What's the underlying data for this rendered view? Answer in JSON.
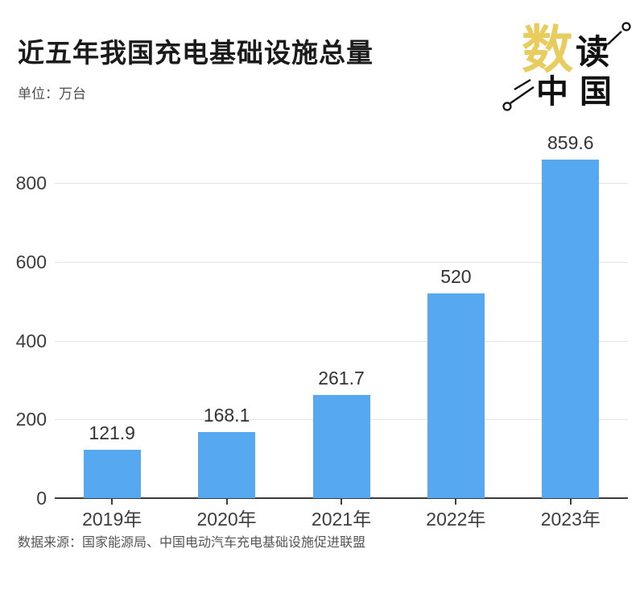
{
  "header": {
    "title": "近五年我国充电基础设施总量",
    "unit_label": "单位：万台"
  },
  "logo": {
    "char_main": "数",
    "char_second": "读",
    "chars_bottom": "中国",
    "accent_color": "#E8CC5E",
    "text_color": "#111111"
  },
  "chart_data": {
    "type": "bar",
    "categories": [
      "2019年",
      "2020年",
      "2021年",
      "2022年",
      "2023年"
    ],
    "values": [
      121.9,
      168.1,
      261.7,
      520,
      859.6
    ],
    "value_labels": [
      "121.9",
      "168.1",
      "261.7",
      "520",
      "859.6"
    ],
    "title": "近五年我国充电基础设施总量",
    "unit": "万台",
    "xlabel": "",
    "ylabel": "",
    "ylim": [
      0,
      880
    ],
    "yticks": [
      0,
      200,
      400,
      600,
      800
    ],
    "grid": true,
    "legend": "none",
    "bar_color": "#56A9F0",
    "gridline_color": "#e3e3e3",
    "axis_color": "#3d3d3d"
  },
  "footer": {
    "source": "数据来源：国家能源局、中国电动汽车充电基础设施促进联盟"
  }
}
